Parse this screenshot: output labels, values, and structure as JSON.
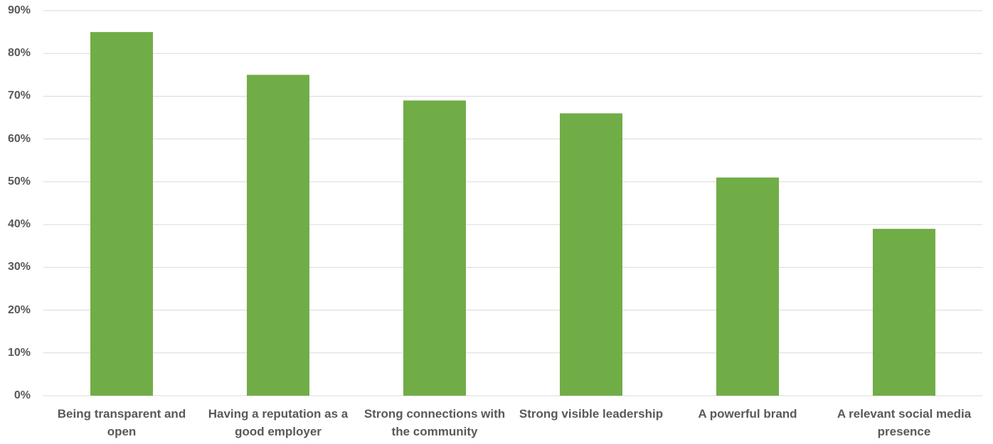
{
  "chart_data": {
    "type": "bar",
    "categories": [
      "Being transparent and open",
      "Having a reputation as a good employer",
      "Strong connections with the community",
      "Strong visible leadership",
      "A powerful brand",
      "A relevant social media presence"
    ],
    "values": [
      85,
      75,
      69,
      66,
      51,
      39
    ],
    "color": "#70ad47",
    "ylim": [
      0,
      90
    ],
    "yticks": [
      {
        "value": 0,
        "label": "0%"
      },
      {
        "value": 10,
        "label": "10%"
      },
      {
        "value": 20,
        "label": "20%"
      },
      {
        "value": 30,
        "label": "30%"
      },
      {
        "value": 40,
        "label": "40%"
      },
      {
        "value": 50,
        "label": "50%"
      },
      {
        "value": 60,
        "label": "60%"
      },
      {
        "value": 70,
        "label": "70%"
      },
      {
        "value": 80,
        "label": "80%"
      },
      {
        "value": 90,
        "label": "90%"
      }
    ],
    "grid": true
  }
}
